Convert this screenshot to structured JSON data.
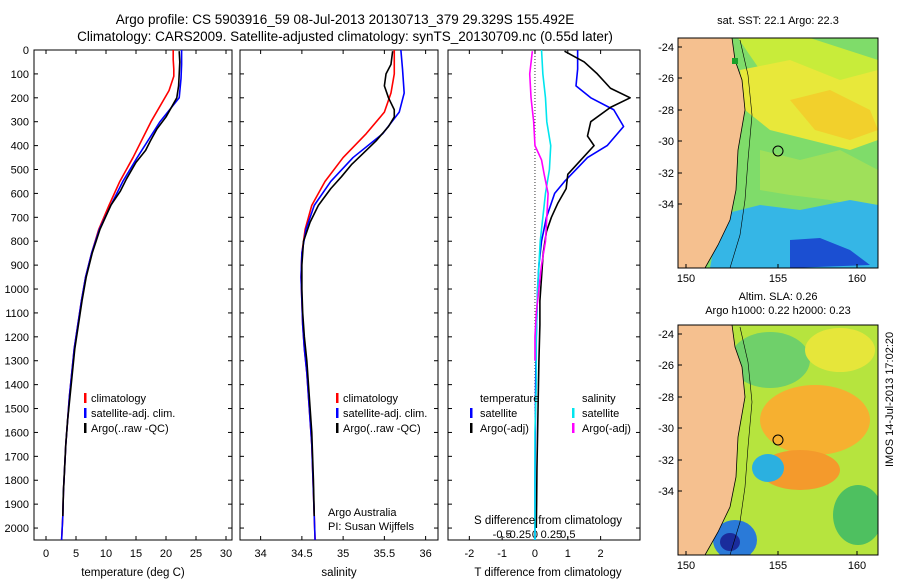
{
  "header": {
    "line1": "Argo profile: CS 5903916_59 08-Jul-2013 20130713_379 29.329S 155.492E",
    "line2": "Climatology: CARS2009. Satellite-adjusted climatology: synTS_20130709.nc (0.55d later)"
  },
  "colors": {
    "climatology": "#ff0000",
    "satellite": "#0000ff",
    "argo": "#000000",
    "sal_sat": "#00e5ee",
    "sal_argo": "#ff00ff",
    "land": "#f5c08f"
  },
  "chart_data": [
    {
      "type": "line",
      "name": "temperature-profile",
      "xlabel": "temperature (deg C)",
      "ylabel": "",
      "xlim": [
        -2,
        31
      ],
      "ylim": [
        2050,
        0
      ],
      "xticks": [
        "0",
        "5",
        "10",
        "15",
        "20",
        "25",
        "30"
      ],
      "yticks": [
        "0",
        "100",
        "200",
        "300",
        "400",
        "500",
        "600",
        "700",
        "800",
        "900",
        "1000",
        "1100",
        "1200",
        "1300",
        "1400",
        "1500",
        "1600",
        "1700",
        "1800",
        "1900",
        "2000"
      ],
      "legend": [
        "climatology",
        "satellite-adj. clim.",
        "Argo(..raw -QC)"
      ],
      "series": [
        {
          "name": "climatology",
          "x": [
            21.2,
            21.2,
            21.3,
            21.3,
            20.5,
            17.5,
            14.5,
            12.3,
            10.5,
            8.8,
            7.6,
            6.6,
            5.9,
            5.3,
            4.7,
            4.3,
            3.9,
            3.6,
            3.3,
            3.1,
            2.9,
            2.8,
            2.6
          ],
          "depth": [
            0,
            40,
            80,
            110,
            170,
            300,
            450,
            550,
            650,
            750,
            850,
            950,
            1050,
            1150,
            1250,
            1350,
            1450,
            1550,
            1650,
            1750,
            1850,
            1950,
            2050
          ]
        },
        {
          "name": "satellite-adj. clim.",
          "x": [
            22.6,
            22.6,
            22.5,
            22.2,
            19.0,
            15.2,
            12.8,
            10.8,
            8.9,
            7.6,
            6.6,
            5.9,
            5.3,
            4.7,
            4.3,
            3.9,
            3.6,
            3.3,
            3.1,
            2.9,
            2.8,
            2.6
          ],
          "depth": [
            0,
            60,
            120,
            200,
            300,
            450,
            550,
            650,
            750,
            850,
            950,
            1050,
            1150,
            1250,
            1350,
            1450,
            1550,
            1650,
            1750,
            1850,
            1950,
            2050
          ]
        },
        {
          "name": "Argo(..raw -QC)",
          "x": [
            22.2,
            22.3,
            22.2,
            22.1,
            21.8,
            20.0,
            18.5,
            17.4,
            16.6,
            15.0,
            13.4,
            12.4,
            10.8,
            9.0,
            7.7,
            6.7,
            6.0,
            5.4,
            4.8,
            4.4,
            4.0,
            3.6,
            3.3,
            3.1,
            2.9,
            2.8
          ],
          "depth": [
            5,
            50,
            100,
            150,
            200,
            280,
            330,
            380,
            420,
            470,
            540,
            590,
            650,
            750,
            850,
            950,
            1050,
            1150,
            1250,
            1350,
            1450,
            1550,
            1650,
            1750,
            1850,
            1950
          ]
        }
      ]
    },
    {
      "type": "line",
      "name": "salinity-profile",
      "xlabel": "salinity",
      "xlim": [
        33.75,
        36.15
      ],
      "ylim": [
        2050,
        0
      ],
      "xticks": [
        "34",
        "34.5",
        "35",
        "35.5",
        "36"
      ],
      "legend": [
        "climatology",
        "satellite-adj. clim.",
        "Argo(..raw -QC)"
      ],
      "annotation": [
        "Argo Australia",
        "PI: Susan Wijffels"
      ],
      "series": [
        {
          "name": "climatology",
          "x": [
            35.62,
            35.62,
            35.58,
            35.5,
            35.28,
            35.0,
            34.78,
            34.62,
            34.54,
            34.5,
            34.49,
            34.5,
            34.51,
            34.53,
            34.56,
            34.58,
            34.6,
            34.62,
            34.63,
            34.64,
            34.65,
            34.66
          ],
          "depth": [
            0,
            100,
            180,
            260,
            350,
            450,
            550,
            650,
            750,
            850,
            950,
            1050,
            1150,
            1250,
            1350,
            1450,
            1550,
            1650,
            1750,
            1850,
            1950,
            2050
          ]
        },
        {
          "name": "satellite-adj. clim.",
          "x": [
            35.7,
            35.72,
            35.74,
            35.68,
            35.48,
            35.12,
            34.85,
            34.65,
            34.55,
            34.5,
            34.49,
            34.5,
            34.51,
            34.53,
            34.56,
            34.58,
            34.6,
            34.62,
            34.63,
            34.64,
            34.65,
            34.66
          ],
          "depth": [
            0,
            80,
            180,
            260,
            350,
            450,
            550,
            650,
            750,
            850,
            950,
            1050,
            1150,
            1250,
            1350,
            1450,
            1550,
            1650,
            1750,
            1850,
            1950,
            2050
          ]
        },
        {
          "name": "Argo(..raw -QC)",
          "x": [
            35.6,
            35.58,
            35.52,
            35.5,
            35.55,
            35.62,
            35.62,
            35.55,
            35.4,
            35.25,
            35.1,
            34.98,
            34.85,
            34.7,
            34.6,
            34.52,
            34.5,
            34.5,
            34.51,
            34.53,
            34.56,
            34.58,
            34.6,
            34.62,
            34.64,
            34.65
          ],
          "depth": [
            5,
            60,
            100,
            150,
            200,
            250,
            280,
            320,
            380,
            430,
            480,
            530,
            580,
            650,
            720,
            800,
            900,
            1000,
            1100,
            1200,
            1300,
            1400,
            1500,
            1600,
            1800,
            1950
          ]
        }
      ]
    },
    {
      "type": "line",
      "name": "difference-profile",
      "xlabel": "T difference from climatology",
      "xlabel_top": "S difference from climatology",
      "xlim": [
        -2.65,
        3.2
      ],
      "ylim": [
        2050,
        0
      ],
      "xticks": [
        "-2",
        "-1",
        "0",
        "1",
        "2"
      ],
      "xticks_top": [
        "-0.5",
        "-0.25",
        "0",
        "0.25",
        "0.5"
      ],
      "legend_left_title": "temperature",
      "legend_right_title": "salinity",
      "legend_left": [
        "satellite",
        "Argo(-adj)"
      ],
      "legend_right": [
        "satellite",
        "Argo(-adj)"
      ],
      "series": [
        {
          "name": "T satellite",
          "x": [
            1.3,
            1.3,
            1.25,
            1.7,
            2.4,
            2.7,
            2.2,
            1.6,
            1.25,
            0.9,
            0.6,
            0.35,
            0.2,
            0.12,
            0.08,
            0.04,
            0.02,
            0.01,
            0.0,
            0.0,
            0.0
          ],
          "depth": [
            0,
            80,
            150,
            200,
            250,
            320,
            400,
            450,
            500,
            550,
            600,
            700,
            800,
            900,
            1000,
            1200,
            1400,
            1600,
            1800,
            2000,
            2050
          ]
        },
        {
          "name": "T Argo(-adj)",
          "x": [
            0.9,
            1.5,
            1.9,
            2.3,
            2.9,
            2.3,
            1.7,
            1.6,
            1.8,
            1.4,
            1.0,
            0.95,
            0.7,
            0.5,
            0.35,
            0.25,
            0.2,
            0.15,
            0.15,
            0.12,
            0.1,
            0.08,
            0.06,
            0.05,
            0.04
          ],
          "depth": [
            5,
            50,
            100,
            160,
            200,
            240,
            300,
            360,
            400,
            460,
            520,
            580,
            640,
            700,
            760,
            850,
            950,
            1050,
            1150,
            1300,
            1450,
            1600,
            1750,
            1900,
            2000
          ]
        },
        {
          "name": "S satellite",
          "x": [
            0.05,
            0.06,
            0.08,
            0.09,
            0.12,
            0.11,
            0.08,
            0.06,
            0.04,
            0.03,
            0.02,
            0.01,
            0.01,
            0.0,
            0.0,
            0.0
          ],
          "depth": [
            0,
            100,
            200,
            300,
            400,
            500,
            600,
            700,
            800,
            900,
            1000,
            1200,
            1400,
            1600,
            1800,
            2050
          ]
        },
        {
          "name": "S Argo(-adj)",
          "x": [
            -0.02,
            -0.04,
            -0.03,
            -0.01,
            0.0,
            0.05,
            0.07,
            0.1,
            0.09,
            0.08,
            0.05,
            0.03,
            0.01,
            0.0,
            0.0,
            0.0
          ],
          "depth": [
            5,
            100,
            200,
            300,
            400,
            460,
            520,
            600,
            700,
            800,
            900,
            1000,
            1100,
            1200,
            1250,
            1300
          ]
        }
      ]
    }
  ],
  "maps": {
    "sst": {
      "title": "sat. SST: 22.1  Argo: 22.3"
    },
    "sla": {
      "title_line1": "Altim. SLA: 0.26",
      "title_line2": "Argo h1000: 0.22 h2000: 0.23"
    },
    "xticks": [
      "150",
      "155",
      "160"
    ],
    "yticks": [
      "-24",
      "-26",
      "-28",
      "-30",
      "-32",
      "-34"
    ],
    "timestamp": "IMOS 14-Jul-2013 17:02:20"
  }
}
